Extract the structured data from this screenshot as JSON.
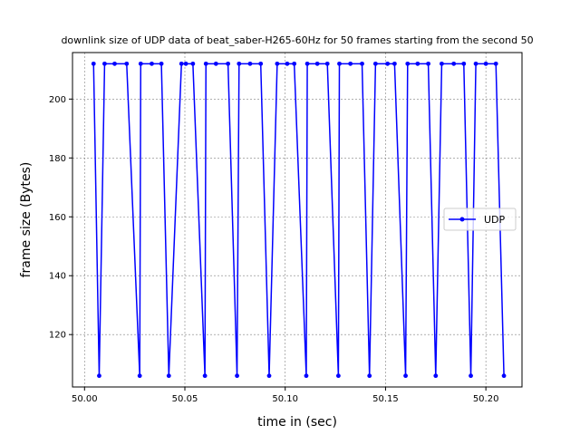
{
  "chart_data": {
    "type": "line",
    "title": "downlink size of UDP data of beat_saber-H265-60Hz for 50 frames starting from the second 50",
    "xlabel": "time in (sec)",
    "ylabel": "frame size (Bytes)",
    "xlim": [
      49.994,
      50.218
    ],
    "ylim": [
      102.2,
      215.8
    ],
    "xticks": [
      {
        "value": 50.0,
        "label": "50.00"
      },
      {
        "value": 50.05,
        "label": "50.05"
      },
      {
        "value": 50.1,
        "label": "50.10"
      },
      {
        "value": 50.15,
        "label": "50.15"
      },
      {
        "value": 50.2,
        "label": "50.20"
      }
    ],
    "yticks": [
      {
        "value": 120,
        "label": "120"
      },
      {
        "value": 140,
        "label": "140"
      },
      {
        "value": 160,
        "label": "160"
      },
      {
        "value": 180,
        "label": "180"
      },
      {
        "value": 200,
        "label": "200"
      }
    ],
    "grid": true,
    "legend_position": "right",
    "colors": {
      "series": "#0000ff",
      "grid": "#808080"
    },
    "series": [
      {
        "name": "UDP",
        "marker": "circle",
        "points": [
          [
            50.0045,
            212
          ],
          [
            50.0073,
            106
          ],
          [
            50.01,
            212
          ],
          [
            50.015,
            212
          ],
          [
            50.021,
            212
          ],
          [
            50.0275,
            106
          ],
          [
            50.028,
            212
          ],
          [
            50.0335,
            212
          ],
          [
            50.0383,
            212
          ],
          [
            50.042,
            106
          ],
          [
            50.0483,
            212
          ],
          [
            50.0505,
            212
          ],
          [
            50.054,
            212
          ],
          [
            50.06,
            106
          ],
          [
            50.0605,
            212
          ],
          [
            50.0655,
            212
          ],
          [
            50.0715,
            212
          ],
          [
            50.076,
            106
          ],
          [
            50.077,
            212
          ],
          [
            50.0825,
            212
          ],
          [
            50.0878,
            212
          ],
          [
            50.092,
            106
          ],
          [
            50.096,
            212
          ],
          [
            50.101,
            212
          ],
          [
            50.1045,
            212
          ],
          [
            50.1105,
            106
          ],
          [
            50.111,
            212
          ],
          [
            50.116,
            212
          ],
          [
            50.121,
            212
          ],
          [
            50.1265,
            106
          ],
          [
            50.127,
            212
          ],
          [
            50.1325,
            212
          ],
          [
            50.1383,
            212
          ],
          [
            50.142,
            106
          ],
          [
            50.145,
            212
          ],
          [
            50.151,
            212
          ],
          [
            50.1545,
            212
          ],
          [
            50.16,
            106
          ],
          [
            50.161,
            212
          ],
          [
            50.166,
            212
          ],
          [
            50.1713,
            212
          ],
          [
            50.175,
            106
          ],
          [
            50.178,
            212
          ],
          [
            50.184,
            212
          ],
          [
            50.189,
            212
          ],
          [
            50.1925,
            106
          ],
          [
            50.195,
            212
          ],
          [
            50.2,
            212
          ],
          [
            50.205,
            212
          ],
          [
            50.209,
            106
          ]
        ]
      }
    ]
  }
}
